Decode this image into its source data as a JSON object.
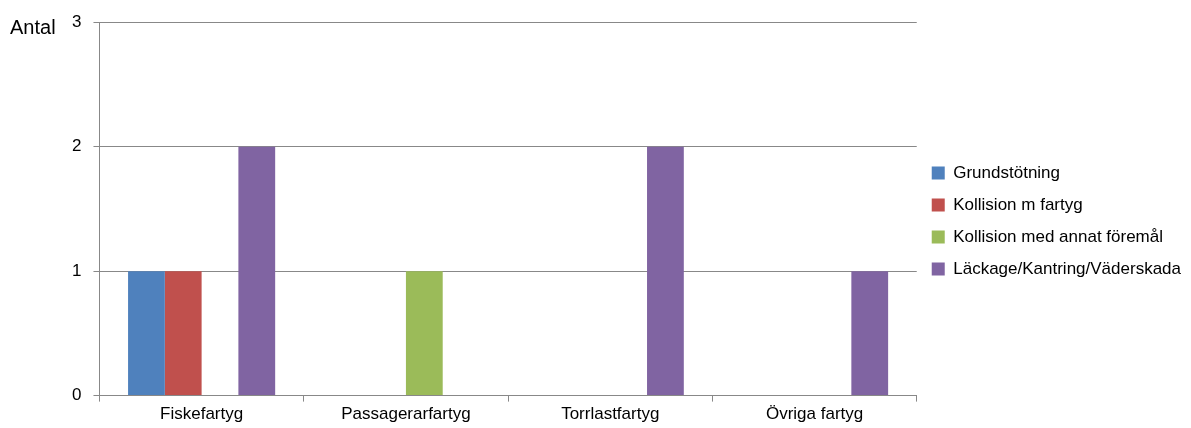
{
  "chart_data": {
    "type": "bar",
    "ylabel": "Antal",
    "categories": [
      "Fiskefartyg",
      "Passagerarfartyg",
      "Torrlastfartyg",
      "Övriga fartyg"
    ],
    "series": [
      {
        "name": "Grundstötning",
        "color": "#4f81bd",
        "values": [
          1,
          0,
          0,
          0
        ]
      },
      {
        "name": "Kollision m fartyg",
        "color": "#c0504d",
        "values": [
          1,
          0,
          0,
          0
        ]
      },
      {
        "name": "Kollision med annat föremål",
        "color": "#9bbb59",
        "values": [
          0,
          1,
          0,
          0
        ]
      },
      {
        "name": "Läckage/Kantring/Väderskada",
        "color": "#8064a2",
        "values": [
          2,
          0,
          2,
          1
        ]
      }
    ],
    "ylim": [
      0,
      3
    ],
    "yticks": [
      0,
      1,
      2,
      3
    ],
    "grid": "y",
    "legend": "right"
  }
}
